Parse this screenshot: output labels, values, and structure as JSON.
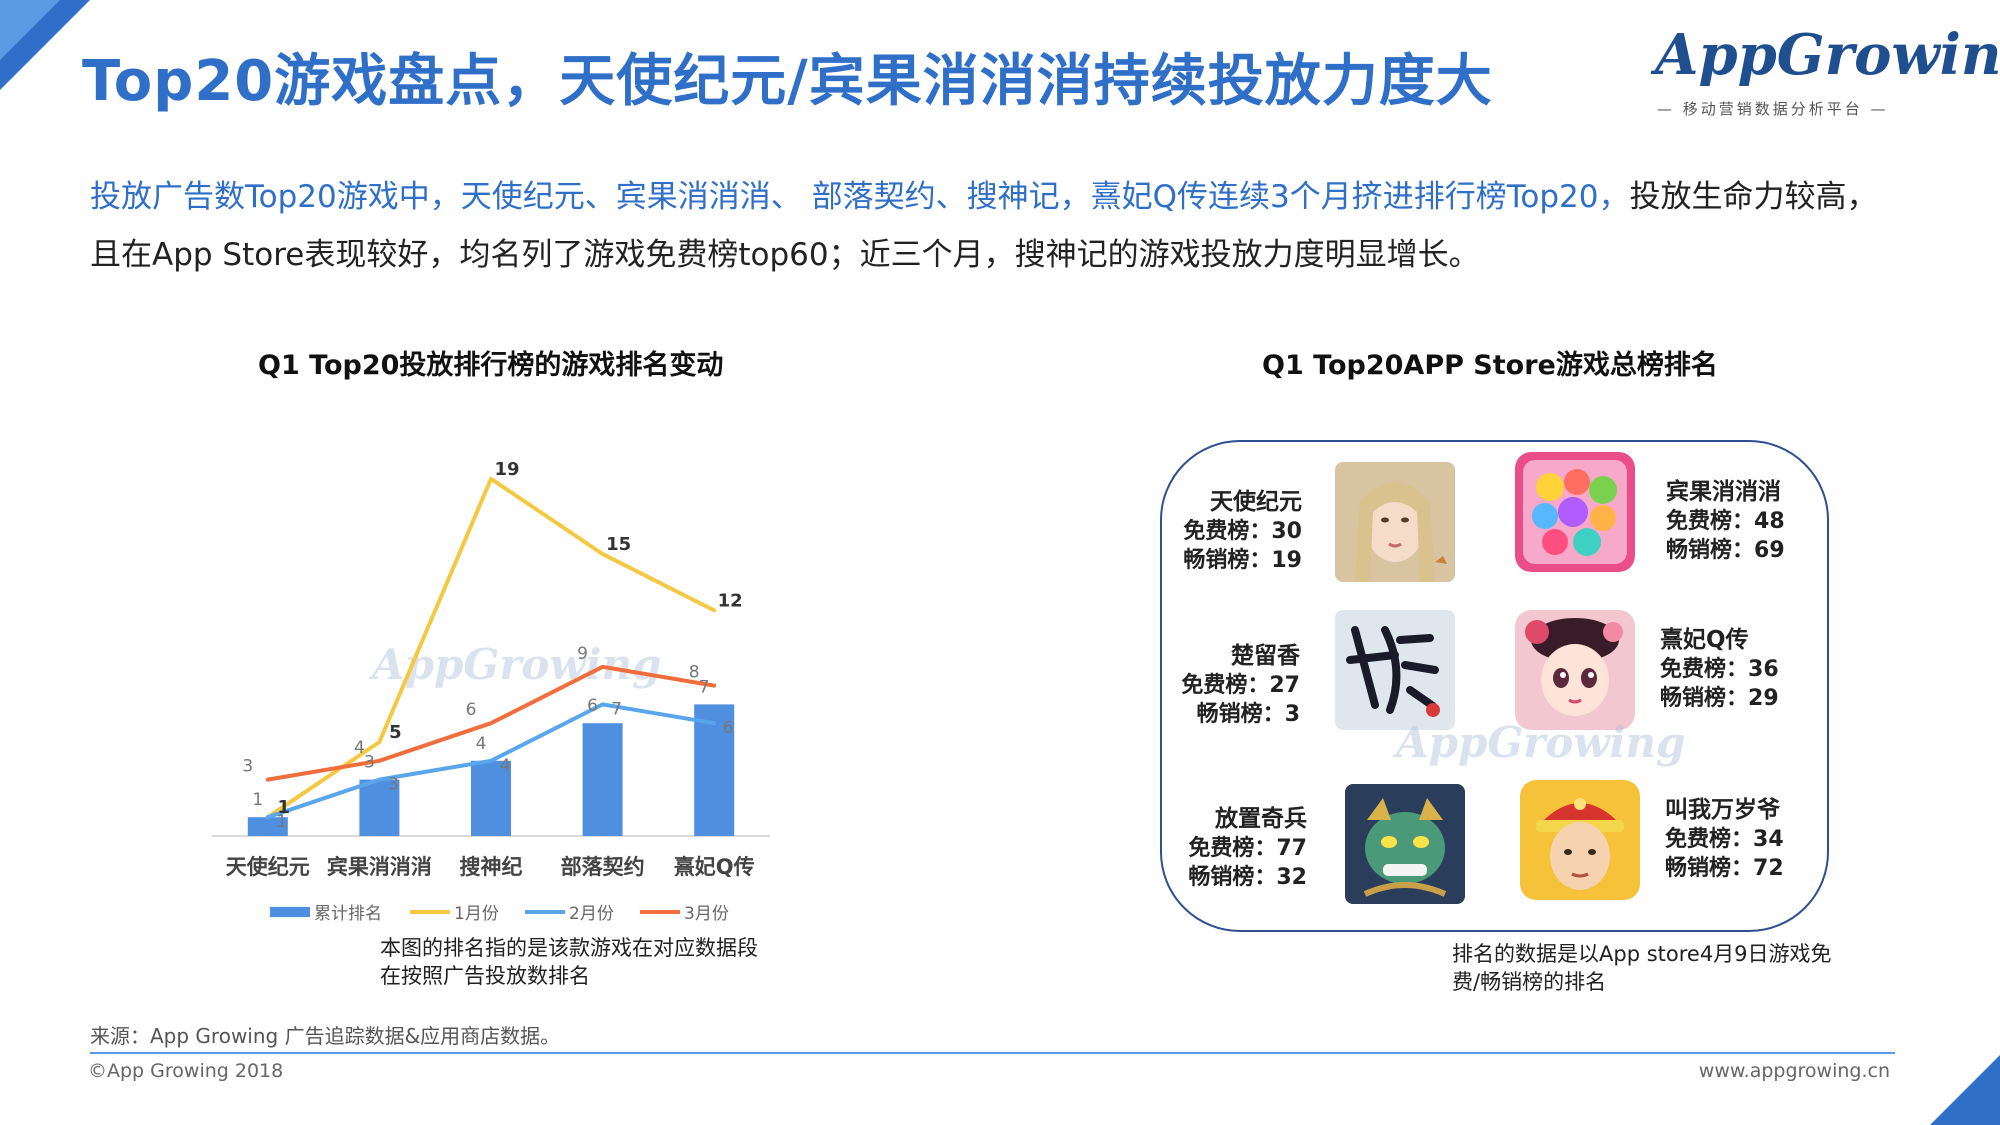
{
  "header": {
    "title": "Top20游戏盘点，天使纪元/宾果消消消持续投放力度大",
    "logo_text": "AppGrowing",
    "logo_sub": "— 移动营销数据分析平台 —"
  },
  "intro": {
    "highlight": "投放广告数Top20游戏中，天使纪元、宾果消消消、 部落契约、搜神记，熹妃Q传连续3个月挤进排行榜Top20，",
    "rest": "投放生命力较高，且在App Store表现较好，均名列了游戏免费榜top60；近三个月，搜神记的游戏投放力度明显增长。"
  },
  "left_chart": {
    "title": "Q1 Top20投放排行榜的游戏排名变动",
    "note": "本图的排名指的是该款游戏在对应数据段在按照广告投放数排名"
  },
  "right_panel": {
    "title": "Q1 Top20APP Store游戏总榜排名",
    "note": "排名的数据是以App store4月9日游戏免费/畅销榜的排名",
    "free_label": "免费榜：",
    "grossing_label": "畅销榜：",
    "games": [
      {
        "name": "天使纪元",
        "free": "30",
        "grossing": "19",
        "icon": "angel-portrait-icon"
      },
      {
        "name": "宾果消消消",
        "free": "48",
        "grossing": "69",
        "icon": "candy-icon"
      },
      {
        "name": "楚留香",
        "free": "27",
        "grossing": "3",
        "icon": "calligraphy-icon"
      },
      {
        "name": "熹妃Q传",
        "free": "36",
        "grossing": "29",
        "icon": "doll-portrait-icon"
      },
      {
        "name": "放置奇兵",
        "free": "77",
        "grossing": "32",
        "icon": "dragon-icon"
      },
      {
        "name": "叫我万岁爷",
        "free": "34",
        "grossing": "72",
        "icon": "emperor-portrait-icon"
      }
    ]
  },
  "footer": {
    "source": "来源：App Growing 广告追踪数据&应用商店数据。",
    "copyright": "©App Growing 2018",
    "url": "www.appgrowing.cn"
  },
  "colors": {
    "accent": "#2f6fc7",
    "bar": "#4e8fe0",
    "jan": "#f5c842",
    "feb": "#5aa6ec",
    "mar": "#f06d3c"
  },
  "chart_data": {
    "type": "bar",
    "title": "Q1 Top20投放排行榜的游戏排名变动",
    "categories": [
      "天使纪元",
      "宾果消消消",
      "搜神纪",
      "部落契约",
      "熹妃Q传"
    ],
    "series": [
      {
        "name": "累计排名",
        "type": "bar",
        "values": [
          1,
          3,
          4,
          6,
          7
        ],
        "labels": [
          "1",
          "3",
          "4",
          "6",
          "7"
        ]
      },
      {
        "name": "1月份",
        "type": "line",
        "values": [
          1,
          5,
          19,
          15,
          12
        ],
        "labels": [
          "1",
          "5",
          "19",
          "15",
          "12"
        ]
      },
      {
        "name": "2月份",
        "type": "line",
        "values": [
          1,
          3,
          4,
          7,
          6
        ],
        "labels": [
          "1",
          "3",
          "4",
          "7",
          "6"
        ]
      },
      {
        "name": "3月份",
        "type": "line",
        "values": [
          3,
          4,
          6,
          9,
          8
        ],
        "labels": [
          "3",
          "4",
          "6",
          "9",
          "8"
        ]
      }
    ],
    "legend_position": "bottom"
  }
}
